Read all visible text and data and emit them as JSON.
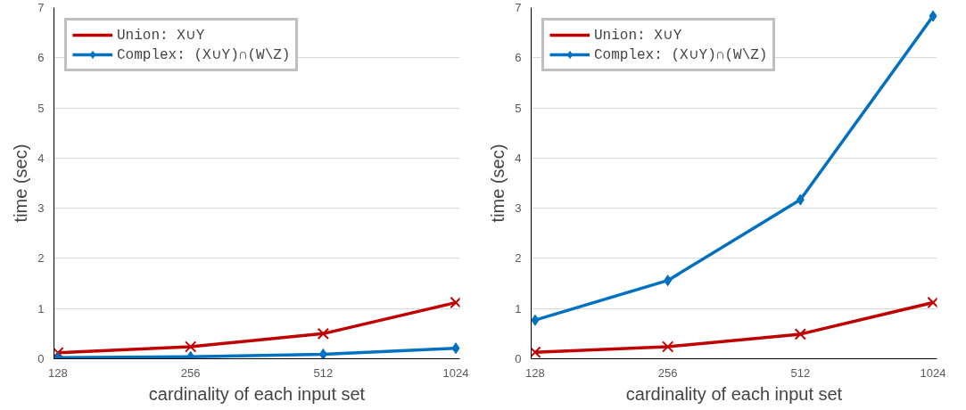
{
  "chart_data": [
    {
      "type": "line",
      "categories": [
        "128",
        "256",
        "512",
        "1024"
      ],
      "xlabel": "cardinality of each input set",
      "ylabel": "time (sec)",
      "ylim": [
        0,
        7
      ],
      "yticks": [
        0,
        1,
        2,
        3,
        4,
        5,
        6,
        7
      ],
      "grid": "y",
      "legend": "top left",
      "line_style": "solid",
      "series": [
        {
          "name": "Union: X∪Y",
          "color": "#c00000",
          "marker": "cross",
          "values": [
            0.12,
            0.24,
            0.5,
            1.12
          ]
        },
        {
          "name": "Complex: (X∪Y)∩(W\\Z)",
          "color": "#0070c0",
          "marker": "diamond",
          "values": [
            0.02,
            0.04,
            0.09,
            0.21
          ]
        }
      ]
    },
    {
      "type": "line",
      "categories": [
        "128",
        "256",
        "512",
        "1024"
      ],
      "xlabel": "cardinality of each input set",
      "ylabel": "time (sec)",
      "ylim": [
        0,
        7
      ],
      "yticks": [
        0,
        1,
        2,
        3,
        4,
        5,
        6,
        7
      ],
      "grid": "y",
      "legend": "top left",
      "line_style": "solid",
      "series": [
        {
          "name": "Union: X∪Y",
          "color": "#c00000",
          "marker": "cross",
          "values": [
            0.13,
            0.24,
            0.49,
            1.12
          ]
        },
        {
          "name": "Complex: (X∪Y)∩(W\\Z)",
          "color": "#0070c0",
          "marker": "diamond",
          "values": [
            0.77,
            1.56,
            3.17,
            6.83
          ]
        }
      ]
    }
  ]
}
